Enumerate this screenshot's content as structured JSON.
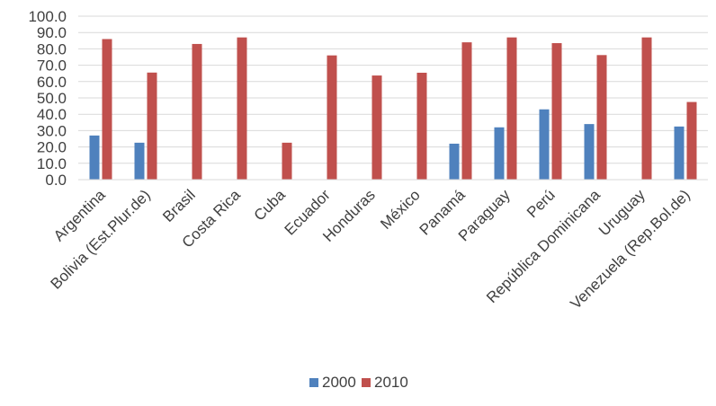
{
  "chart_data": {
    "type": "bar",
    "categories": [
      "Argentina",
      "Bolivia (Est.Plur.de)",
      "Brasil",
      "Costa Rica",
      "Cuba",
      "Ecuador",
      "Honduras",
      "México",
      "Panamá",
      "Paraguay",
      "Perú",
      "República Dominicana",
      "Uruguay",
      "Venezuela (Rep.Bol.de)"
    ],
    "series": [
      {
        "name": "2000",
        "color": "#4F81BD",
        "values": [
          27.0,
          22.6,
          null,
          null,
          null,
          null,
          null,
          null,
          22.0,
          32.0,
          43.0,
          34.0,
          null,
          32.5
        ]
      },
      {
        "name": "2010",
        "color": "#C0504D",
        "values": [
          86.0,
          65.5,
          83.0,
          87.0,
          22.6,
          76.0,
          63.7,
          65.4,
          84.0,
          87.0,
          83.5,
          76.2,
          87.0,
          47.5
        ]
      }
    ],
    "yticks": [
      "0.0",
      "10.0",
      "20.0",
      "30.0",
      "40.0",
      "50.0",
      "60.0",
      "70.0",
      "80.0",
      "90.0",
      "100.0"
    ],
    "ylim": [
      0,
      100
    ],
    "title": "",
    "xlabel": "",
    "ylabel": "",
    "grid": true,
    "legend_position": "bottom"
  }
}
